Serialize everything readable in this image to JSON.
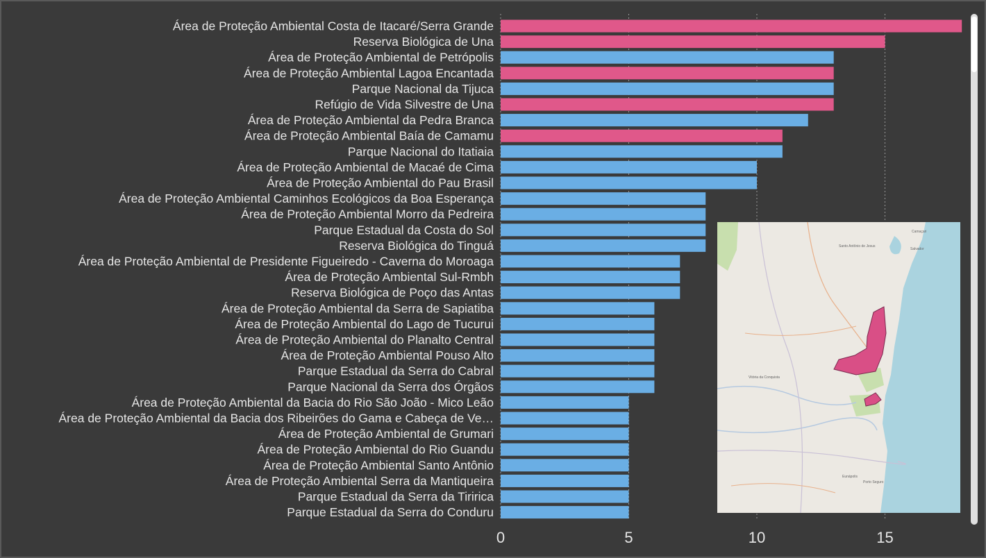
{
  "chart_data": {
    "type": "bar",
    "orientation": "horizontal",
    "title": "",
    "xlabel": "",
    "ylabel": "",
    "xlim": [
      0,
      18
    ],
    "xticks": [
      0,
      5,
      10,
      15
    ],
    "grid": "vertical dotted",
    "colors": {
      "highlight": "#e0588a",
      "default": "#6aaee4"
    },
    "categories": [
      "Área de Proteção Ambiental Costa de Itacaré/Serra Grande",
      "Reserva Biológica de Una",
      "Área de Proteção Ambiental de Petrópolis",
      "Área de Proteção Ambiental Lagoa Encantada",
      "Parque Nacional da Tijuca",
      "Refúgio de Vida Silvestre de Una",
      "Área de Proteção Ambiental da Pedra Branca",
      "Área de Proteção Ambiental Baía de Camamu",
      "Parque Nacional do Itatiaia",
      "Área de Proteção Ambiental de Macaé de Cima",
      "Área de Proteção Ambiental do Pau Brasil",
      "Área de Proteção Ambiental Caminhos Ecológicos da Boa Esperança",
      "Área de Proteção Ambiental Morro da Pedreira",
      "Parque Estadual da Costa do Sol",
      "Reserva Biológica do Tinguá",
      "Área de Proteção Ambiental de Presidente Figueiredo - Caverna do Moroaga",
      "Área de Proteção Ambiental Sul-Rmbh",
      "Reserva Biológica de Poço das Antas",
      "Área de Proteção Ambiental da Serra de Sapiatiba",
      "Área de Proteção Ambiental do Lago de Tucurui",
      "Área de Proteção Ambiental do Planalto Central",
      "Área de Proteção Ambiental Pouso Alto",
      "Parque Estadual da Serra do Cabral",
      "Parque Nacional da Serra dos Órgãos",
      "Área de Proteção Ambiental da Bacia do Rio São João - Mico Leão",
      "Área de Proteção Ambiental da Bacia dos Ribeirões do Gama e Cabeça de Ve…",
      "Área de Proteção Ambiental de Grumari",
      "Área de Proteção Ambiental do Rio Guandu",
      "Área de Proteção Ambiental Santo Antônio",
      "Área de Proteção Ambiental Serra da Mantiqueira",
      "Parque Estadual da Serra da Tiririca",
      "Parque Estadual da Serra do Conduru"
    ],
    "values": [
      18,
      15,
      13,
      13,
      13,
      13,
      12,
      11,
      11,
      10,
      10,
      8,
      8,
      8,
      8,
      7,
      7,
      7,
      6,
      6,
      6,
      6,
      6,
      6,
      5,
      5,
      5,
      5,
      5,
      5,
      5,
      5
    ],
    "highlighted": [
      true,
      true,
      false,
      true,
      false,
      true,
      false,
      true,
      false,
      false,
      false,
      false,
      false,
      false,
      false,
      false,
      false,
      false,
      false,
      false,
      false,
      false,
      false,
      false,
      false,
      false,
      false,
      false,
      false,
      false,
      false,
      false
    ]
  },
  "map_inset": {
    "labels": [
      "Santo Antônio de Jesus",
      "Salvador",
      "Camaçari",
      "Vitória da Conquista",
      "Eunápolis",
      "Porto Seguro"
    ],
    "colors": {
      "land": "#ece9e3",
      "sea": "#aad3df",
      "protected_area": "#d94f86",
      "forest": "#c8dfae"
    }
  }
}
